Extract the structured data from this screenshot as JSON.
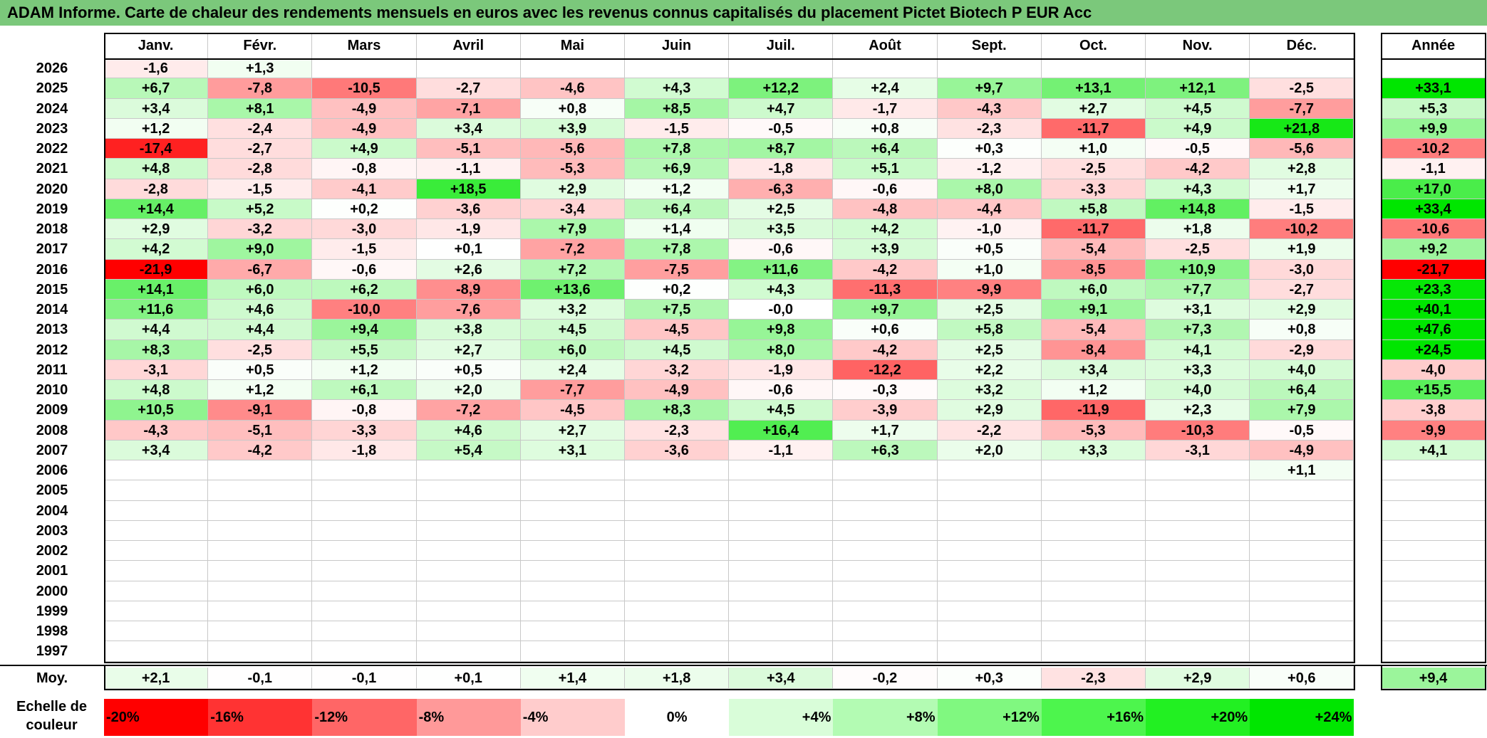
{
  "title": "ADAM Informe. Carte de chaleur des rendements mensuels en euros avec les revenus connus capitalisés du placement Pictet Biotech P EUR Acc",
  "chart_data": {
    "type": "heatmap",
    "title": "ADAM Informe. Carte de chaleur des rendements mensuels en euros avec les revenus connus capitalisés du placement Pictet Biotech P EUR Acc",
    "columns": [
      "Janv.",
      "Févr.",
      "Mars",
      "Avril",
      "Mai",
      "Juin",
      "Juil.",
      "Août",
      "Sept.",
      "Oct.",
      "Nov.",
      "Déc."
    ],
    "year_column": "Année",
    "rows": [
      {
        "year": "2026",
        "months": [
          "-1,6",
          "+1,3",
          "",
          "",
          "",
          "",
          "",
          "",
          "",
          "",
          "",
          ""
        ],
        "annual": ""
      },
      {
        "year": "2025",
        "months": [
          "+6,7",
          "-7,8",
          "-10,5",
          "-2,7",
          "-4,6",
          "+4,3",
          "+12,2",
          "+2,4",
          "+9,7",
          "+13,1",
          "+12,1",
          "-2,5"
        ],
        "annual": "+33,1"
      },
      {
        "year": "2024",
        "months": [
          "+3,4",
          "+8,1",
          "-4,9",
          "-7,1",
          "+0,8",
          "+8,5",
          "+4,7",
          "-1,7",
          "-4,3",
          "+2,7",
          "+4,5",
          "-7,7"
        ],
        "annual": "+5,3"
      },
      {
        "year": "2023",
        "months": [
          "+1,2",
          "-2,4",
          "-4,9",
          "+3,4",
          "+3,9",
          "-1,5",
          "-0,5",
          "+0,8",
          "-2,3",
          "-11,7",
          "+4,9",
          "+21,8"
        ],
        "annual": "+9,9"
      },
      {
        "year": "2022",
        "months": [
          "-17,4",
          "-2,7",
          "+4,9",
          "-5,1",
          "-5,6",
          "+7,8",
          "+8,7",
          "+6,4",
          "+0,3",
          "+1,0",
          "-0,5",
          "-5,6"
        ],
        "annual": "-10,2"
      },
      {
        "year": "2021",
        "months": [
          "+4,8",
          "-2,8",
          "-0,8",
          "-1,1",
          "-5,3",
          "+6,9",
          "-1,8",
          "+5,1",
          "-1,2",
          "-2,5",
          "-4,2",
          "+2,8"
        ],
        "annual": "-1,1"
      },
      {
        "year": "2020",
        "months": [
          "-2,8",
          "-1,5",
          "-4,1",
          "+18,5",
          "+2,9",
          "+1,2",
          "-6,3",
          "-0,6",
          "+8,0",
          "-3,3",
          "+4,3",
          "+1,7"
        ],
        "annual": "+17,0"
      },
      {
        "year": "2019",
        "months": [
          "+14,4",
          "+5,2",
          "+0,2",
          "-3,6",
          "-3,4",
          "+6,4",
          "+2,5",
          "-4,8",
          "-4,4",
          "+5,8",
          "+14,8",
          "-1,5"
        ],
        "annual": "+33,4"
      },
      {
        "year": "2018",
        "months": [
          "+2,9",
          "-3,2",
          "-3,0",
          "-1,9",
          "+7,9",
          "+1,4",
          "+3,5",
          "+4,2",
          "-1,0",
          "-11,7",
          "+1,8",
          "-10,2"
        ],
        "annual": "-10,6"
      },
      {
        "year": "2017",
        "months": [
          "+4,2",
          "+9,0",
          "-1,5",
          "+0,1",
          "-7,2",
          "+7,8",
          "-0,6",
          "+3,9",
          "+0,5",
          "-5,4",
          "-2,5",
          "+1,9"
        ],
        "annual": "+9,2"
      },
      {
        "year": "2016",
        "months": [
          "-21,9",
          "-6,7",
          "-0,6",
          "+2,6",
          "+7,2",
          "-7,5",
          "+11,6",
          "-4,2",
          "+1,0",
          "-8,5",
          "+10,9",
          "-3,0"
        ],
        "annual": "-21,7"
      },
      {
        "year": "2015",
        "months": [
          "+14,1",
          "+6,0",
          "+6,2",
          "-8,9",
          "+13,6",
          "+0,2",
          "+4,3",
          "-11,3",
          "-9,9",
          "+6,0",
          "+7,7",
          "-2,7"
        ],
        "annual": "+23,3"
      },
      {
        "year": "2014",
        "months": [
          "+11,6",
          "+4,6",
          "-10,0",
          "-7,6",
          "+3,2",
          "+7,5",
          "-0,0",
          "+9,7",
          "+2,5",
          "+9,1",
          "+3,1",
          "+2,9"
        ],
        "annual": "+40,1"
      },
      {
        "year": "2013",
        "months": [
          "+4,4",
          "+4,4",
          "+9,4",
          "+3,8",
          "+4,5",
          "-4,5",
          "+9,8",
          "+0,6",
          "+5,8",
          "-5,4",
          "+7,3",
          "+0,8"
        ],
        "annual": "+47,6"
      },
      {
        "year": "2012",
        "months": [
          "+8,3",
          "-2,5",
          "+5,5",
          "+2,7",
          "+6,0",
          "+4,5",
          "+8,0",
          "-4,2",
          "+2,5",
          "-8,4",
          "+4,1",
          "-2,9"
        ],
        "annual": "+24,5"
      },
      {
        "year": "2011",
        "months": [
          "-3,1",
          "+0,5",
          "+1,2",
          "+0,5",
          "+2,4",
          "-3,2",
          "-1,9",
          "-12,2",
          "+2,2",
          "+3,4",
          "+3,3",
          "+4,0"
        ],
        "annual": "-4,0"
      },
      {
        "year": "2010",
        "months": [
          "+4,8",
          "+1,2",
          "+6,1",
          "+2,0",
          "-7,7",
          "-4,9",
          "-0,6",
          "-0,3",
          "+3,2",
          "+1,2",
          "+4,0",
          "+6,4"
        ],
        "annual": "+15,5"
      },
      {
        "year": "2009",
        "months": [
          "+10,5",
          "-9,1",
          "-0,8",
          "-7,2",
          "-4,5",
          "+8,3",
          "+4,5",
          "-3,9",
          "+2,9",
          "-11,9",
          "+2,3",
          "+7,9"
        ],
        "annual": "-3,8"
      },
      {
        "year": "2008",
        "months": [
          "-4,3",
          "-5,1",
          "-3,3",
          "+4,6",
          "+2,7",
          "-2,3",
          "+16,4",
          "+1,7",
          "-2,2",
          "-5,3",
          "-10,3",
          "-0,5"
        ],
        "annual": "-9,9"
      },
      {
        "year": "2007",
        "months": [
          "+3,4",
          "-4,2",
          "-1,8",
          "+5,4",
          "+3,1",
          "-3,6",
          "-1,1",
          "+6,3",
          "+2,0",
          "+3,3",
          "-3,1",
          "-4,9"
        ],
        "annual": "+4,1"
      },
      {
        "year": "2006",
        "months": [
          "",
          "",
          "",
          "",
          "",
          "",
          "",
          "",
          "",
          "",
          "",
          "+1,1"
        ],
        "annual": ""
      },
      {
        "year": "2005",
        "months": [
          "",
          "",
          "",
          "",
          "",
          "",
          "",
          "",
          "",
          "",
          "",
          ""
        ],
        "annual": ""
      },
      {
        "year": "2004",
        "months": [
          "",
          "",
          "",
          "",
          "",
          "",
          "",
          "",
          "",
          "",
          "",
          ""
        ],
        "annual": ""
      },
      {
        "year": "2003",
        "months": [
          "",
          "",
          "",
          "",
          "",
          "",
          "",
          "",
          "",
          "",
          "",
          ""
        ],
        "annual": ""
      },
      {
        "year": "2002",
        "months": [
          "",
          "",
          "",
          "",
          "",
          "",
          "",
          "",
          "",
          "",
          "",
          ""
        ],
        "annual": ""
      },
      {
        "year": "2001",
        "months": [
          "",
          "",
          "",
          "",
          "",
          "",
          "",
          "",
          "",
          "",
          "",
          ""
        ],
        "annual": ""
      },
      {
        "year": "2000",
        "months": [
          "",
          "",
          "",
          "",
          "",
          "",
          "",
          "",
          "",
          "",
          "",
          ""
        ],
        "annual": ""
      },
      {
        "year": "1999",
        "months": [
          "",
          "",
          "",
          "",
          "",
          "",
          "",
          "",
          "",
          "",
          "",
          ""
        ],
        "annual": ""
      },
      {
        "year": "1998",
        "months": [
          "",
          "",
          "",
          "",
          "",
          "",
          "",
          "",
          "",
          "",
          "",
          ""
        ],
        "annual": ""
      },
      {
        "year": "1997",
        "months": [
          "",
          "",
          "",
          "",
          "",
          "",
          "",
          "",
          "",
          "",
          "",
          ""
        ],
        "annual": ""
      }
    ],
    "average": {
      "label": "Moy.",
      "months": [
        "+2,1",
        "-0,1",
        "-0,1",
        "+0,1",
        "+1,4",
        "+1,8",
        "+3,4",
        "-0,2",
        "+0,3",
        "-2,3",
        "+2,9",
        "+0,6"
      ],
      "annual": "+9,4"
    },
    "color_scale": {
      "label": "Echelle de couleur",
      "stops": [
        {
          "text": "-20%",
          "value": -20,
          "color": "#ff0000"
        },
        {
          "text": "-16%",
          "value": -16,
          "color": "#ff3333"
        },
        {
          "text": "-12%",
          "value": -12,
          "color": "#ff6666"
        },
        {
          "text": "-8%",
          "value": -8,
          "color": "#ff9999"
        },
        {
          "text": "-4%",
          "value": -4,
          "color": "#ffcccc"
        },
        {
          "text": "0%",
          "value": 0,
          "color": "#ffffff"
        },
        {
          "text": "+4%",
          "value": 4,
          "color": "#d9fdd9"
        },
        {
          "text": "+8%",
          "value": 8,
          "color": "#b3fbb3"
        },
        {
          "text": "+12%",
          "value": 12,
          "color": "#80f880"
        },
        {
          "text": "+16%",
          "value": 16,
          "color": "#4df54d"
        },
        {
          "text": "+20%",
          "value": 20,
          "color": "#22f022"
        },
        {
          "text": "+24%",
          "value": 24,
          "color": "#00e600"
        }
      ]
    }
  }
}
